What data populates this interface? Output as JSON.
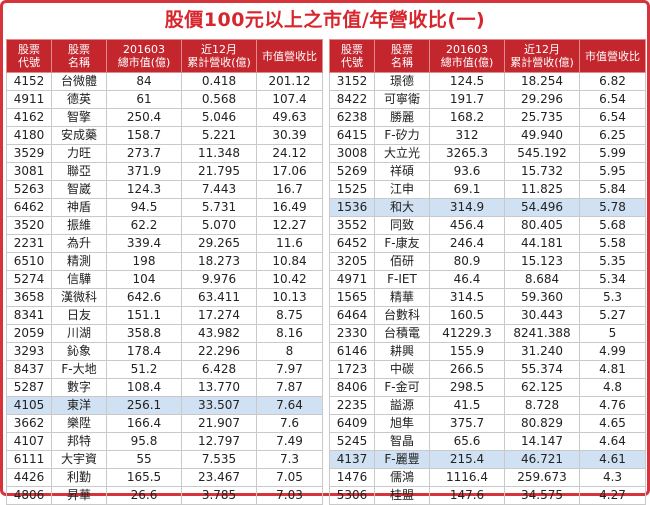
{
  "title": "股價100元以上之市值/年營收比(一)",
  "tables": [
    {
      "headers": [
        [
          "股票",
          "代號"
        ],
        [
          "股票",
          "名稱"
        ],
        [
          "201603",
          "總市值(億)"
        ],
        [
          "近12月",
          "累計營收(億)"
        ],
        [
          "市值營收比"
        ]
      ],
      "highlighted_rows": [
        18
      ],
      "rows": [
        [
          "4152",
          "台微體",
          "84",
          "0.418",
          "201.12"
        ],
        [
          "4911",
          "德英",
          "61",
          "0.568",
          "107.4"
        ],
        [
          "4162",
          "智擎",
          "250.4",
          "5.046",
          "49.63"
        ],
        [
          "4180",
          "安成藥",
          "158.7",
          "5.221",
          "30.39"
        ],
        [
          "3529",
          "力旺",
          "273.7",
          "11.348",
          "24.12"
        ],
        [
          "3081",
          "聯亞",
          "371.9",
          "21.795",
          "17.06"
        ],
        [
          "5263",
          "智崴",
          "124.3",
          "7.443",
          "16.7"
        ],
        [
          "6462",
          "神盾",
          "94.5",
          "5.731",
          "16.49"
        ],
        [
          "3520",
          "振維",
          "62.2",
          "5.070",
          "12.27"
        ],
        [
          "2231",
          "為升",
          "339.4",
          "29.265",
          "11.6"
        ],
        [
          "6510",
          "精測",
          "198",
          "18.273",
          "10.84"
        ],
        [
          "5274",
          "信驊",
          "104",
          "9.976",
          "10.42"
        ],
        [
          "3658",
          "漢微科",
          "642.6",
          "63.411",
          "10.13"
        ],
        [
          "8341",
          "日友",
          "151.1",
          "17.274",
          "8.75"
        ],
        [
          "2059",
          "川湖",
          "358.8",
          "43.982",
          "8.16"
        ],
        [
          "3293",
          "鈊象",
          "178.4",
          "22.296",
          "8"
        ],
        [
          "8437",
          "F-大地",
          "51.2",
          "6.428",
          "7.97"
        ],
        [
          "5287",
          "數字",
          "108.4",
          "13.770",
          "7.87"
        ],
        [
          "4105",
          "東洋",
          "256.1",
          "33.507",
          "7.64"
        ],
        [
          "3662",
          "樂陞",
          "166.4",
          "21.907",
          "7.6"
        ],
        [
          "4107",
          "邦特",
          "95.8",
          "12.797",
          "7.49"
        ],
        [
          "6111",
          "大宇資",
          "55",
          "7.535",
          "7.3"
        ],
        [
          "4426",
          "利勤",
          "165.5",
          "23.467",
          "7.05"
        ],
        [
          "4806",
          "昇華",
          "26.6",
          "3.785",
          "7.03"
        ]
      ]
    },
    {
      "headers": [
        [
          "股票",
          "代號"
        ],
        [
          "股票",
          "名稱"
        ],
        [
          "201603",
          "總市值(億)"
        ],
        [
          "近12月",
          "累計營收(億)"
        ],
        [
          "市值營收比"
        ]
      ],
      "highlighted_rows": [
        7,
        21
      ],
      "rows": [
        [
          "3152",
          "璟德",
          "124.5",
          "18.254",
          "6.82"
        ],
        [
          "8422",
          "可寧衛",
          "191.7",
          "29.296",
          "6.54"
        ],
        [
          "6238",
          "勝麗",
          "168.2",
          "25.735",
          "6.54"
        ],
        [
          "6415",
          "F-矽力",
          "312",
          "49.940",
          "6.25"
        ],
        [
          "3008",
          "大立光",
          "3265.3",
          "545.192",
          "5.99"
        ],
        [
          "5269",
          "祥碩",
          "93.6",
          "15.732",
          "5.95"
        ],
        [
          "1525",
          "江申",
          "69.1",
          "11.825",
          "5.84"
        ],
        [
          "1536",
          "和大",
          "314.9",
          "54.496",
          "5.78"
        ],
        [
          "3552",
          "同致",
          "456.4",
          "80.405",
          "5.68"
        ],
        [
          "6452",
          "F-康友",
          "246.4",
          "44.181",
          "5.58"
        ],
        [
          "3205",
          "佰研",
          "80.9",
          "15.123",
          "5.35"
        ],
        [
          "4971",
          "F-IET",
          "46.4",
          "8.684",
          "5.34"
        ],
        [
          "1565",
          "精華",
          "314.5",
          "59.360",
          "5.3"
        ],
        [
          "6464",
          "台數科",
          "160.5",
          "30.443",
          "5.27"
        ],
        [
          "2330",
          "台積電",
          "41229.3",
          "8241.388",
          "5"
        ],
        [
          "6146",
          "耕興",
          "155.9",
          "31.240",
          "4.99"
        ],
        [
          "1723",
          "中碳",
          "266.5",
          "55.374",
          "4.81"
        ],
        [
          "8406",
          "F-金可",
          "298.5",
          "62.125",
          "4.8"
        ],
        [
          "2235",
          "謚源",
          "41.5",
          "8.728",
          "4.76"
        ],
        [
          "6409",
          "旭隼",
          "375.7",
          "80.829",
          "4.65"
        ],
        [
          "5245",
          "智晶",
          "65.6",
          "14.147",
          "4.64"
        ],
        [
          "4137",
          "F-麗豐",
          "215.4",
          "46.721",
          "4.61"
        ],
        [
          "1476",
          "儒鴻",
          "1116.4",
          "259.673",
          "4.3"
        ],
        [
          "5306",
          "桂盟",
          "147.6",
          "34.575",
          "4.27"
        ]
      ]
    }
  ]
}
